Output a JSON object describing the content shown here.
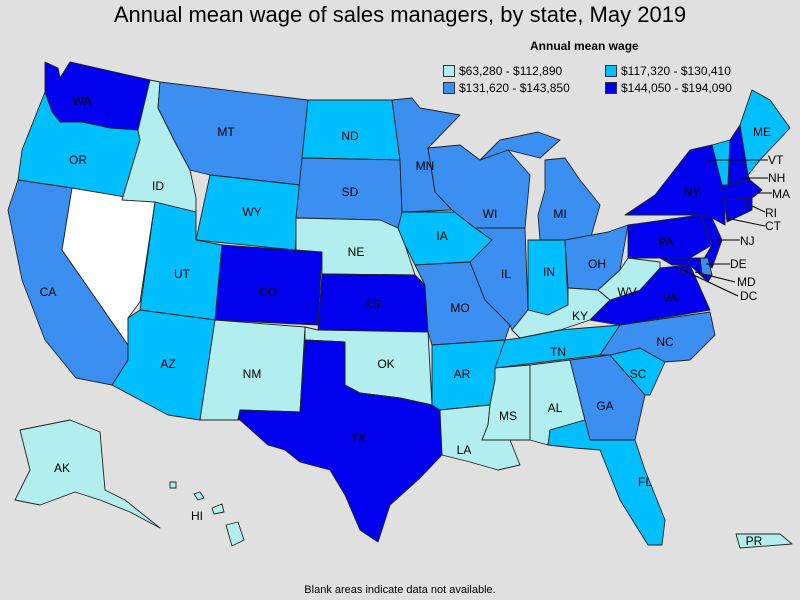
{
  "title": "Annual mean wage of sales managers, by state, May 2019",
  "legend": {
    "title": "Annual mean wage",
    "items": [
      {
        "label": "$63,280 - $112,890",
        "color": "#b2eeee"
      },
      {
        "label": "$117,320 - $130,410",
        "color": "#00bfff"
      },
      {
        "label": "$131,620 - $143,850",
        "color": "#3a8ff0"
      },
      {
        "label": "$144,050 - $194,090",
        "color": "#0000ee"
      }
    ]
  },
  "footnote": "Blank areas indicate data not available.",
  "nodata_color": "#ffffff",
  "states": {
    "WA": {
      "tier": 3
    },
    "OR": {
      "tier": 1
    },
    "CA": {
      "tier": 2
    },
    "NV": {
      "tier": null
    },
    "ID": {
      "tier": 0
    },
    "MT": {
      "tier": 2
    },
    "WY": {
      "tier": 1
    },
    "UT": {
      "tier": 1
    },
    "AZ": {
      "tier": 1
    },
    "CO": {
      "tier": 3
    },
    "NM": {
      "tier": 0
    },
    "ND": {
      "tier": 1
    },
    "SD": {
      "tier": 2
    },
    "NE": {
      "tier": 0
    },
    "KS": {
      "tier": 3
    },
    "OK": {
      "tier": 0
    },
    "TX": {
      "tier": 3
    },
    "MN": {
      "tier": 2
    },
    "IA": {
      "tier": 1
    },
    "MO": {
      "tier": 2
    },
    "AR": {
      "tier": 1
    },
    "LA": {
      "tier": 0
    },
    "WI": {
      "tier": 2
    },
    "IL": {
      "tier": 2
    },
    "MI": {
      "tier": 2
    },
    "IN": {
      "tier": 1
    },
    "OH": {
      "tier": 2
    },
    "KY": {
      "tier": 0
    },
    "TN": {
      "tier": 1
    },
    "MS": {
      "tier": 0
    },
    "AL": {
      "tier": 0
    },
    "GA": {
      "tier": 2
    },
    "FL": {
      "tier": 1
    },
    "SC": {
      "tier": 1
    },
    "NC": {
      "tier": 2
    },
    "VA": {
      "tier": 3
    },
    "WV": {
      "tier": 0
    },
    "PA": {
      "tier": 3
    },
    "NY": {
      "tier": 3
    },
    "VT": {
      "tier": 1
    },
    "NH": {
      "tier": 3
    },
    "ME": {
      "tier": 1
    },
    "MA": {
      "tier": 3
    },
    "RI": {
      "tier": 3
    },
    "CT": {
      "tier": 3
    },
    "NJ": {
      "tier": 3
    },
    "DE": {
      "tier": 2
    },
    "MD": {
      "tier": 3
    },
    "DC": {
      "tier": 3
    },
    "AK": {
      "tier": 0
    },
    "HI": {
      "tier": 0
    },
    "PR": {
      "tier": 0
    }
  }
}
